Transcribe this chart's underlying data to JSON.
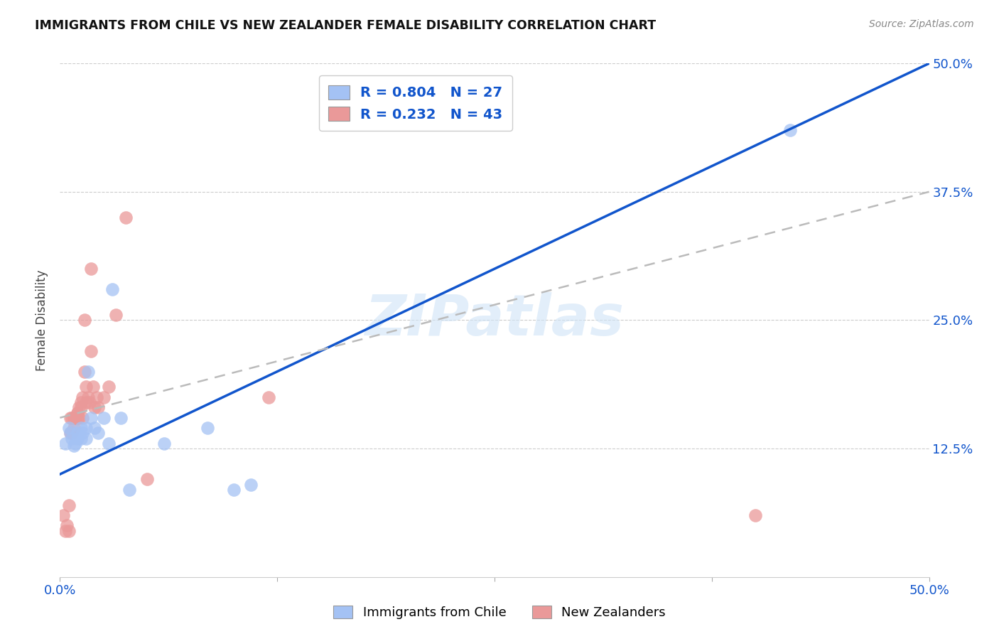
{
  "title": "IMMIGRANTS FROM CHILE VS NEW ZEALANDER FEMALE DISABILITY CORRELATION CHART",
  "source": "Source: ZipAtlas.com",
  "ylabel": "Female Disability",
  "xlim": [
    0.0,
    0.5
  ],
  "ylim": [
    0.0,
    0.5
  ],
  "xtick_labels": [
    "0.0%",
    "",
    "",
    "",
    "50.0%"
  ],
  "xtick_vals": [
    0.0,
    0.125,
    0.25,
    0.375,
    0.5
  ],
  "ytick_vals": [
    0.125,
    0.25,
    0.375,
    0.5
  ],
  "right_ytick_labels": [
    "12.5%",
    "25.0%",
    "37.5%",
    "50.0%"
  ],
  "blue_color": "#a4c2f4",
  "pink_color": "#ea9999",
  "blue_line_color": "#1155cc",
  "pink_line_color": "#bbbbbb",
  "blue_R": 0.804,
  "blue_N": 27,
  "pink_R": 0.232,
  "pink_N": 43,
  "legend_color": "#1155cc",
  "watermark_text": "ZIPatlas",
  "blue_scatter_x": [
    0.003,
    0.005,
    0.006,
    0.007,
    0.008,
    0.009,
    0.01,
    0.01,
    0.012,
    0.012,
    0.013,
    0.015,
    0.015,
    0.016,
    0.018,
    0.02,
    0.022,
    0.025,
    0.028,
    0.03,
    0.035,
    0.04,
    0.06,
    0.085,
    0.1,
    0.11,
    0.42
  ],
  "blue_scatter_y": [
    0.13,
    0.145,
    0.14,
    0.135,
    0.128,
    0.13,
    0.135,
    0.14,
    0.135,
    0.145,
    0.14,
    0.135,
    0.145,
    0.2,
    0.155,
    0.145,
    0.14,
    0.155,
    0.13,
    0.28,
    0.155,
    0.085,
    0.13,
    0.145,
    0.085,
    0.09,
    0.435
  ],
  "pink_scatter_x": [
    0.002,
    0.003,
    0.004,
    0.005,
    0.005,
    0.006,
    0.006,
    0.007,
    0.007,
    0.008,
    0.008,
    0.008,
    0.009,
    0.009,
    0.009,
    0.01,
    0.01,
    0.01,
    0.011,
    0.011,
    0.012,
    0.012,
    0.013,
    0.013,
    0.014,
    0.014,
    0.015,
    0.015,
    0.016,
    0.017,
    0.018,
    0.018,
    0.019,
    0.02,
    0.021,
    0.022,
    0.025,
    0.028,
    0.032,
    0.038,
    0.05,
    0.12,
    0.4
  ],
  "pink_scatter_y": [
    0.06,
    0.045,
    0.05,
    0.07,
    0.045,
    0.14,
    0.155,
    0.14,
    0.155,
    0.155,
    0.155,
    0.145,
    0.155,
    0.155,
    0.155,
    0.16,
    0.16,
    0.155,
    0.155,
    0.165,
    0.165,
    0.17,
    0.155,
    0.175,
    0.2,
    0.25,
    0.17,
    0.185,
    0.175,
    0.17,
    0.22,
    0.3,
    0.185,
    0.165,
    0.175,
    0.165,
    0.175,
    0.185,
    0.255,
    0.35,
    0.095,
    0.175,
    0.06
  ],
  "blue_line_x0": 0.0,
  "blue_line_y0": 0.1,
  "blue_line_x1": 0.5,
  "blue_line_y1": 0.5,
  "pink_line_x0": 0.0,
  "pink_line_y0": 0.155,
  "pink_line_x1": 0.5,
  "pink_line_y1": 0.375
}
